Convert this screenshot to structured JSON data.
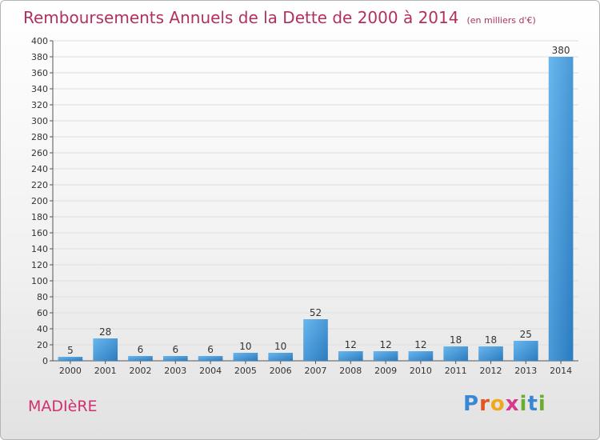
{
  "header": {
    "title": "Remboursements Annuels de la Dette de 2000 à 2014",
    "unit": "(en milliers d'€)"
  },
  "footer": {
    "commune": "MADIèRE",
    "logo_letters": [
      "P",
      "r",
      "o",
      "x",
      "i",
      "t",
      "i"
    ],
    "logo_colors": [
      "#3a87d6",
      "#e5551f",
      "#f2a81d",
      "#d9388b",
      "#6aae2f",
      "#3a87d6",
      "#6aae2f"
    ]
  },
  "colors": {
    "bar_light": "#6ab7ee",
    "bar_dark": "#2a7bc0",
    "grid": "#dddddd",
    "axis": "#555555",
    "title": "#b03060"
  },
  "chart_data": {
    "type": "bar",
    "categories": [
      "2000",
      "2001",
      "2002",
      "2003",
      "2004",
      "2005",
      "2006",
      "2007",
      "2008",
      "2009",
      "2010",
      "2011",
      "2012",
      "2013",
      "2014"
    ],
    "values": [
      5,
      28,
      6,
      6,
      6,
      10,
      10,
      52,
      12,
      12,
      12,
      18,
      18,
      25,
      380
    ],
    "title": "Remboursements Annuels de la Dette de 2000 à 2014",
    "ylim": [
      0,
      400
    ],
    "ytick_step": 20,
    "grid": true,
    "data_labels": true
  }
}
